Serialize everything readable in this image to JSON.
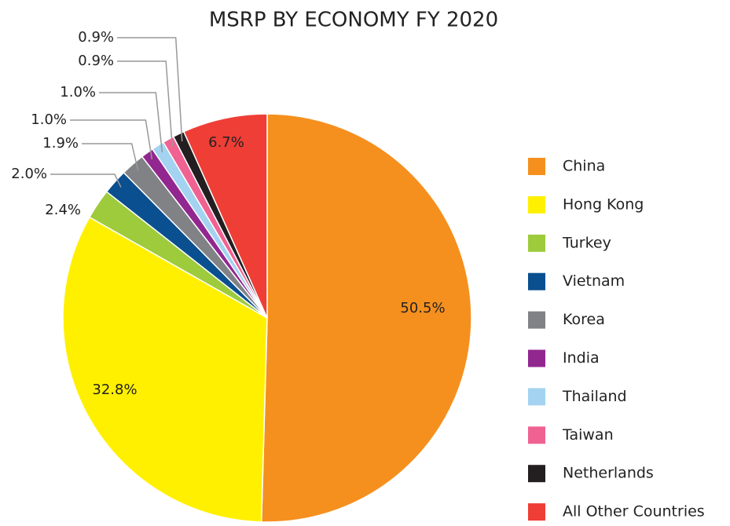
{
  "chart_data": {
    "type": "pie",
    "title": "MSRP BY ECONOMY FY 2020",
    "categories": [
      "China",
      "Hong Kong",
      "Turkey",
      "Vietnam",
      "Korea",
      "India",
      "Thailand",
      "Taiwan",
      "Netherlands",
      "All Other Countries"
    ],
    "values": [
      50.5,
      32.8,
      2.4,
      2.0,
      1.9,
      1.0,
      1.0,
      0.9,
      0.9,
      6.7
    ],
    "value_labels": [
      "50.5%",
      "32.8%",
      "2.4%",
      "2.0%",
      "1.9%",
      "1.0%",
      "1.0%",
      "0.9%",
      "0.9%",
      "6.7%"
    ],
    "colors": [
      "#f5901e",
      "#fff000",
      "#9dcb3c",
      "#0a4f8f",
      "#808285",
      "#92278f",
      "#a3d3f0",
      "#f06292",
      "#231f20",
      "#ef3e36"
    ],
    "legend": "right"
  }
}
